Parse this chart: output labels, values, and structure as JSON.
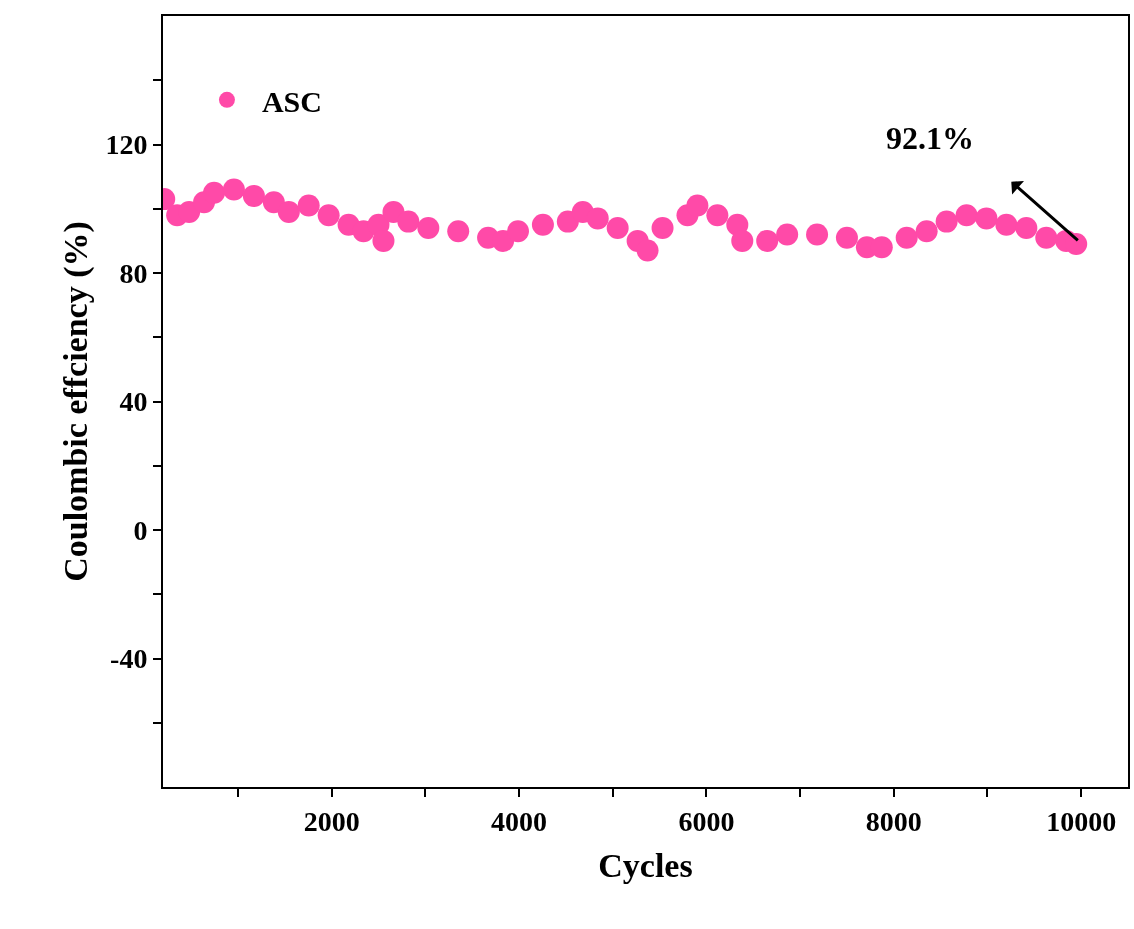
{
  "chart_data": {
    "type": "scatter",
    "xlabel": "Cycles",
    "ylabel": "Coulombic effciency (%)",
    "xlim": [
      200,
      10500
    ],
    "xticks": [
      {
        "value": 1000,
        "label": null
      },
      2000,
      {
        "value": 3000,
        "label": null
      },
      4000,
      {
        "value": 5000,
        "label": null
      },
      6000,
      {
        "value": 7000,
        "label": null
      },
      8000,
      {
        "value": 9000,
        "label": null
      },
      10000
    ],
    "ylim": [
      -80,
      160
    ],
    "yticks": [
      {
        "value": -60,
        "label": null
      },
      -40,
      {
        "value": -20,
        "label": null
      },
      0,
      {
        "value": 20,
        "label": null
      },
      40,
      {
        "value": 60,
        "label": null
      },
      80,
      {
        "value": 100,
        "label": null
      },
      120,
      {
        "value": 140,
        "label": null
      }
    ],
    "x": [
      213,
      351,
      479,
      638,
      745,
      957,
      1170,
      1383,
      1543,
      1755,
      1968,
      2181,
      2340,
      2500,
      2553,
      2660,
      2819,
      3032,
      3351,
      3670,
      3830,
      3989,
      4255,
      4521,
      4681,
      4840,
      5053,
      5266,
      5372,
      5532,
      5798,
      5904,
      6117,
      6330,
      6383,
      6649,
      6862,
      7181,
      7500,
      7713,
      7872,
      8138,
      8351,
      8564,
      8777,
      8989,
      9202,
      9415,
      9628,
      9840,
      9947
    ],
    "series": [
      {
        "name": "ASC",
        "color": "#ff4aa8",
        "values": [
          103,
          98,
          99,
          102,
          105,
          106,
          104,
          102,
          99,
          101,
          98,
          95,
          93,
          95,
          90,
          99,
          96,
          94,
          93,
          91,
          90,
          93,
          95,
          96,
          99,
          97,
          94,
          90,
          87,
          94,
          98,
          101,
          98,
          95,
          90,
          90,
          92,
          92,
          91,
          88,
          88,
          91,
          93,
          96,
          98,
          97,
          95,
          94,
          91,
          90,
          89
        ]
      }
    ],
    "marker": "circle",
    "legend": "top left",
    "annotations": [
      "92.1%"
    ]
  }
}
